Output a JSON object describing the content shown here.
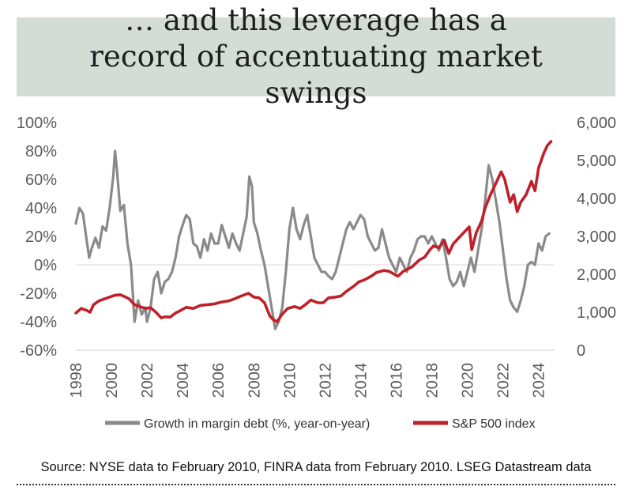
{
  "title": "… and this leverage has a record of accentuating market swings",
  "source_note": "Source: NYSE data to February 2010, FINRA data from February 2010. LSEG Datastream data",
  "colors": {
    "title_bg": "#d3ddd6",
    "margin_line": "#8a8a8a",
    "sp500_line": "#c0202a",
    "tick_text": "#5a5a5a"
  },
  "chart_data": {
    "type": "line",
    "title": "… and this leverage has a record of accentuating market swings",
    "xlabel": "",
    "ylabel_left": "",
    "ylabel_right": "",
    "x_ticks": [
      "1998",
      "2000",
      "2002",
      "2004",
      "2006",
      "2008",
      "2010",
      "2012",
      "2014",
      "2016",
      "2018",
      "2020",
      "2022",
      "2024"
    ],
    "xlim": [
      1998,
      2024.9
    ],
    "y_left_ticks": [
      "100%",
      "80%",
      "60%",
      "40%",
      "20%",
      "0%",
      "-20%",
      "-40%",
      "-60%"
    ],
    "ylim_left": [
      -60,
      100
    ],
    "y_right_ticks": [
      "6,000",
      "5,000",
      "4,000",
      "3,000",
      "2,000",
      "1,000",
      "0"
    ],
    "ylim_right": [
      0,
      6000
    ],
    "grid": false,
    "legend_position": "bottom",
    "series": [
      {
        "name": "Growth in margin debt (%, year-on-year)",
        "axis": "left",
        "color": "#8a8a8a",
        "points": [
          [
            1998.0,
            29
          ],
          [
            1998.2,
            40
          ],
          [
            1998.4,
            36
          ],
          [
            1998.6,
            18
          ],
          [
            1998.75,
            5
          ],
          [
            1998.9,
            12
          ],
          [
            1999.1,
            19
          ],
          [
            1999.3,
            12
          ],
          [
            1999.5,
            27
          ],
          [
            1999.7,
            24
          ],
          [
            1999.9,
            40
          ],
          [
            2000.1,
            62
          ],
          [
            2000.2,
            80
          ],
          [
            2000.3,
            68
          ],
          [
            2000.5,
            38
          ],
          [
            2000.7,
            42
          ],
          [
            2000.9,
            15
          ],
          [
            2001.1,
            0
          ],
          [
            2001.3,
            -40
          ],
          [
            2001.5,
            -25
          ],
          [
            2001.7,
            -35
          ],
          [
            2001.9,
            -30
          ],
          [
            2002.0,
            -40
          ],
          [
            2002.2,
            -30
          ],
          [
            2002.4,
            -10
          ],
          [
            2002.6,
            -5
          ],
          [
            2002.8,
            -20
          ],
          [
            2003.0,
            -12
          ],
          [
            2003.2,
            -10
          ],
          [
            2003.4,
            -5
          ],
          [
            2003.6,
            5
          ],
          [
            2003.8,
            20
          ],
          [
            2004.0,
            28
          ],
          [
            2004.2,
            35
          ],
          [
            2004.4,
            32
          ],
          [
            2004.6,
            15
          ],
          [
            2004.8,
            13
          ],
          [
            2005.0,
            5
          ],
          [
            2005.2,
            18
          ],
          [
            2005.4,
            10
          ],
          [
            2005.6,
            22
          ],
          [
            2005.8,
            15
          ],
          [
            2006.0,
            15
          ],
          [
            2006.2,
            28
          ],
          [
            2006.4,
            20
          ],
          [
            2006.6,
            12
          ],
          [
            2006.8,
            22
          ],
          [
            2007.0,
            15
          ],
          [
            2007.2,
            10
          ],
          [
            2007.4,
            22
          ],
          [
            2007.6,
            34
          ],
          [
            2007.75,
            62
          ],
          [
            2007.9,
            55
          ],
          [
            2008.0,
            30
          ],
          [
            2008.2,
            22
          ],
          [
            2008.4,
            10
          ],
          [
            2008.6,
            0
          ],
          [
            2008.8,
            -15
          ],
          [
            2009.0,
            -30
          ],
          [
            2009.2,
            -45
          ],
          [
            2009.4,
            -40
          ],
          [
            2009.6,
            -30
          ],
          [
            2009.8,
            -5
          ],
          [
            2010.0,
            25
          ],
          [
            2010.2,
            40
          ],
          [
            2010.4,
            25
          ],
          [
            2010.6,
            18
          ],
          [
            2010.8,
            28
          ],
          [
            2011.0,
            35
          ],
          [
            2011.2,
            20
          ],
          [
            2011.4,
            5
          ],
          [
            2011.6,
            0
          ],
          [
            2011.8,
            -5
          ],
          [
            2012.0,
            -5
          ],
          [
            2012.2,
            -8
          ],
          [
            2012.4,
            -10
          ],
          [
            2012.6,
            -5
          ],
          [
            2012.8,
            5
          ],
          [
            2013.0,
            15
          ],
          [
            2013.2,
            25
          ],
          [
            2013.4,
            30
          ],
          [
            2013.6,
            25
          ],
          [
            2013.8,
            30
          ],
          [
            2014.0,
            35
          ],
          [
            2014.2,
            32
          ],
          [
            2014.4,
            20
          ],
          [
            2014.6,
            15
          ],
          [
            2014.8,
            10
          ],
          [
            2015.0,
            12
          ],
          [
            2015.2,
            25
          ],
          [
            2015.4,
            15
          ],
          [
            2015.6,
            5
          ],
          [
            2015.8,
            0
          ],
          [
            2016.0,
            -5
          ],
          [
            2016.2,
            5
          ],
          [
            2016.4,
            0
          ],
          [
            2016.6,
            -5
          ],
          [
            2016.8,
            5
          ],
          [
            2017.0,
            10
          ],
          [
            2017.2,
            18
          ],
          [
            2017.4,
            20
          ],
          [
            2017.6,
            20
          ],
          [
            2017.8,
            15
          ],
          [
            2018.0,
            20
          ],
          [
            2018.2,
            15
          ],
          [
            2018.4,
            10
          ],
          [
            2018.6,
            18
          ],
          [
            2018.8,
            5
          ],
          [
            2019.0,
            -10
          ],
          [
            2019.2,
            -15
          ],
          [
            2019.4,
            -12
          ],
          [
            2019.6,
            -5
          ],
          [
            2019.8,
            -15
          ],
          [
            2020.0,
            -5
          ],
          [
            2020.2,
            5
          ],
          [
            2020.4,
            -5
          ],
          [
            2020.6,
            10
          ],
          [
            2020.8,
            25
          ],
          [
            2021.0,
            45
          ],
          [
            2021.2,
            70
          ],
          [
            2021.4,
            60
          ],
          [
            2021.6,
            45
          ],
          [
            2021.8,
            30
          ],
          [
            2022.0,
            10
          ],
          [
            2022.2,
            -10
          ],
          [
            2022.4,
            -25
          ],
          [
            2022.6,
            -30
          ],
          [
            2022.8,
            -33
          ],
          [
            2023.0,
            -25
          ],
          [
            2023.2,
            -15
          ],
          [
            2023.4,
            0
          ],
          [
            2023.6,
            2
          ],
          [
            2023.8,
            0
          ],
          [
            2024.0,
            15
          ],
          [
            2024.2,
            10
          ],
          [
            2024.4,
            20
          ],
          [
            2024.6,
            22
          ]
        ]
      },
      {
        "name": "S&P 500 index",
        "axis": "right",
        "color": "#c0202a",
        "points": [
          [
            1998.0,
            980
          ],
          [
            1998.3,
            1100
          ],
          [
            1998.6,
            1050
          ],
          [
            1998.8,
            1000
          ],
          [
            1999.0,
            1200
          ],
          [
            1999.3,
            1300
          ],
          [
            1999.6,
            1350
          ],
          [
            1999.9,
            1400
          ],
          [
            2000.2,
            1450
          ],
          [
            2000.5,
            1460
          ],
          [
            2000.8,
            1400
          ],
          [
            2001.0,
            1350
          ],
          [
            2001.3,
            1200
          ],
          [
            2001.6,
            1150
          ],
          [
            2001.9,
            1100
          ],
          [
            2002.2,
            1120
          ],
          [
            2002.5,
            1000
          ],
          [
            2002.8,
            850
          ],
          [
            2003.0,
            880
          ],
          [
            2003.3,
            870
          ],
          [
            2003.6,
            980
          ],
          [
            2003.9,
            1050
          ],
          [
            2004.2,
            1130
          ],
          [
            2004.6,
            1100
          ],
          [
            2005.0,
            1180
          ],
          [
            2005.4,
            1200
          ],
          [
            2005.8,
            1220
          ],
          [
            2006.2,
            1270
          ],
          [
            2006.6,
            1300
          ],
          [
            2006.9,
            1350
          ],
          [
            2007.3,
            1430
          ],
          [
            2007.7,
            1500
          ],
          [
            2008.0,
            1400
          ],
          [
            2008.3,
            1380
          ],
          [
            2008.6,
            1250
          ],
          [
            2008.9,
            900
          ],
          [
            2009.1,
            800
          ],
          [
            2009.3,
            750
          ],
          [
            2009.6,
            950
          ],
          [
            2009.9,
            1100
          ],
          [
            2010.3,
            1150
          ],
          [
            2010.6,
            1100
          ],
          [
            2010.9,
            1200
          ],
          [
            2011.2,
            1320
          ],
          [
            2011.6,
            1250
          ],
          [
            2011.9,
            1250
          ],
          [
            2012.2,
            1380
          ],
          [
            2012.6,
            1400
          ],
          [
            2012.9,
            1430
          ],
          [
            2013.2,
            1550
          ],
          [
            2013.6,
            1680
          ],
          [
            2013.9,
            1800
          ],
          [
            2014.2,
            1850
          ],
          [
            2014.6,
            1950
          ],
          [
            2014.9,
            2050
          ],
          [
            2015.3,
            2100
          ],
          [
            2015.6,
            2080
          ],
          [
            2015.9,
            2000
          ],
          [
            2016.1,
            1950
          ],
          [
            2016.4,
            2080
          ],
          [
            2016.7,
            2150
          ],
          [
            2016.9,
            2200
          ],
          [
            2017.3,
            2380
          ],
          [
            2017.6,
            2450
          ],
          [
            2017.9,
            2650
          ],
          [
            2018.1,
            2750
          ],
          [
            2018.4,
            2700
          ],
          [
            2018.7,
            2900
          ],
          [
            2018.95,
            2550
          ],
          [
            2019.2,
            2800
          ],
          [
            2019.5,
            2950
          ],
          [
            2019.8,
            3100
          ],
          [
            2020.1,
            3250
          ],
          [
            2020.25,
            2650
          ],
          [
            2020.5,
            3100
          ],
          [
            2020.8,
            3400
          ],
          [
            2021.0,
            3750
          ],
          [
            2021.3,
            4100
          ],
          [
            2021.6,
            4400
          ],
          [
            2021.9,
            4700
          ],
          [
            2022.1,
            4500
          ],
          [
            2022.4,
            3900
          ],
          [
            2022.6,
            4100
          ],
          [
            2022.8,
            3650
          ],
          [
            2023.0,
            3900
          ],
          [
            2023.3,
            4100
          ],
          [
            2023.6,
            4450
          ],
          [
            2023.8,
            4200
          ],
          [
            2024.0,
            4800
          ],
          [
            2024.3,
            5200
          ],
          [
            2024.5,
            5400
          ],
          [
            2024.7,
            5500
          ]
        ]
      }
    ]
  }
}
